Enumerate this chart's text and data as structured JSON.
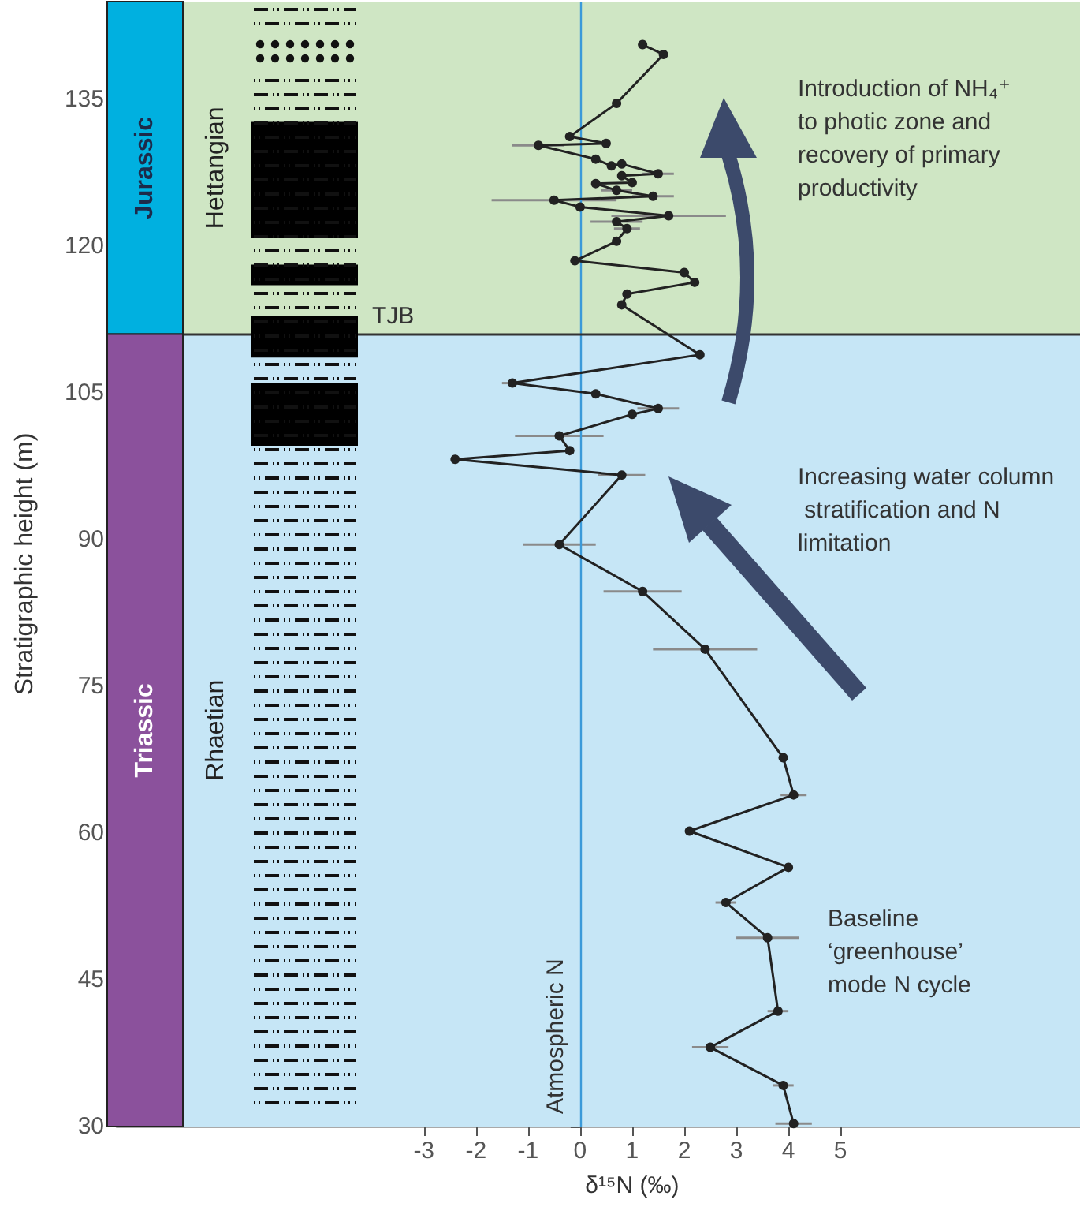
{
  "chart_data": {
    "type": "line",
    "xlabel": "δ¹⁵N (‰)",
    "ylabel": "Stratigraphic height (m)",
    "color": "#222222",
    "marker": "circle",
    "line_style": "solid",
    "grid": false,
    "xlim": [
      -8.9,
      9.6
    ],
    "xticks": [
      -3,
      -2,
      -1,
      0,
      1,
      2,
      3,
      4,
      5
    ],
    "ylim": [
      30,
      145
    ],
    "yticks": [
      30,
      45,
      60,
      75,
      90,
      105,
      120,
      135
    ],
    "x": [
      1.2,
      1.6,
      0.7,
      -0.2,
      0.5,
      -0.8,
      0.3,
      0.6,
      0.8,
      1.5,
      0.8,
      1.0,
      0.3,
      0.7,
      1.4,
      -0.5,
      0.0,
      1.7,
      0.7,
      0.9,
      0.7,
      -0.1,
      2.0,
      2.2,
      0.9,
      0.8,
      2.3,
      -1.3,
      0.3,
      1.5,
      1.0,
      -0.4,
      -0.2,
      -2.4,
      0.8,
      -0.4,
      1.2,
      2.4,
      3.9,
      4.1,
      2.1,
      4.0,
      2.8,
      3.6,
      3.8,
      2.5,
      3.9,
      4.1
    ],
    "values": [
      140.6,
      139.6,
      134.6,
      131.2,
      130.5,
      130.3,
      128.9,
      128.2,
      128.4,
      127.4,
      127.2,
      126.5,
      126.4,
      125.7,
      125.1,
      124.7,
      124.0,
      123.1,
      122.5,
      121.8,
      120.5,
      118.5,
      117.3,
      116.3,
      115.1,
      114.0,
      108.9,
      106.0,
      104.9,
      103.4,
      102.8,
      100.6,
      99.1,
      98.2,
      96.6,
      89.5,
      84.7,
      78.8,
      67.7,
      63.9,
      60.2,
      56.5,
      52.9,
      49.3,
      41.8,
      38.1,
      34.2,
      30.3
    ],
    "xerrors": [
      null,
      null,
      null,
      null,
      null,
      0.5,
      null,
      null,
      null,
      0.3,
      null,
      null,
      null,
      0.3,
      0.4,
      1.2,
      null,
      1.1,
      0.5,
      0.25,
      null,
      null,
      null,
      null,
      null,
      null,
      null,
      0.2,
      null,
      0.4,
      null,
      0.85,
      null,
      null,
      0.45,
      0.7,
      0.75,
      1.0,
      null,
      0.25,
      null,
      null,
      0.2,
      0.6,
      0.2,
      0.35,
      0.2,
      0.35
    ],
    "ref_lines": [
      {
        "axis": "x",
        "value": 0,
        "label": "Atmospheric N",
        "color": "#3b9ad9"
      },
      {
        "axis": "y",
        "value": 111,
        "label": "TJB",
        "color": "#333333"
      }
    ],
    "bands": [
      {
        "axis": "y",
        "from": 111,
        "to": 145,
        "label": "Jurassic",
        "color": "#00b0e0"
      },
      {
        "axis": "y",
        "from": 30,
        "to": 111,
        "label": "Triassic",
        "color": "#8b519c"
      },
      {
        "axis": "y",
        "from": 111,
        "to": 145,
        "label": "Hettangian",
        "color": "#cfe6c4"
      },
      {
        "axis": "y",
        "from": 30,
        "to": 111,
        "label": "Rhaetian",
        "color": "#c6e6f6"
      },
      {
        "axis": "y",
        "from": 120.8,
        "to": 132.7,
        "color": "#000000"
      },
      {
        "axis": "y",
        "from": 116.0,
        "to": 118.1,
        "color": "#000000"
      },
      {
        "axis": "y",
        "from": 108.6,
        "to": 112.9,
        "color": "#000000"
      },
      {
        "axis": "y",
        "from": 99.6,
        "to": 106.0,
        "color": "#000000"
      }
    ],
    "annotations": [
      "Introduction of NH₄⁺ to photic zone and recovery of primary productivity",
      "Increasing water column stratification and N limitation",
      "Baseline ‘greenhouse’ mode N cycle"
    ]
  }
}
